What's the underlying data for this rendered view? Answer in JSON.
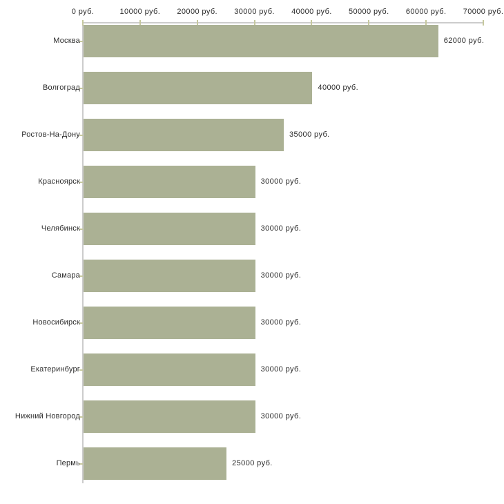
{
  "chart_data": {
    "type": "bar",
    "orientation": "horizontal",
    "title": "",
    "categories": [
      "Москва",
      "Волгоград",
      "Ростов-На-Дону",
      "Красноярск",
      "Челябинск",
      "Самара",
      "Новосибирск",
      "Екатеринбург",
      "Нижний Новгород",
      "Пермь"
    ],
    "values": [
      62000,
      40000,
      35000,
      30000,
      30000,
      30000,
      30000,
      30000,
      30000,
      25000
    ],
    "value_labels": [
      "62000 руб.",
      "40000 руб.",
      "35000 руб.",
      "30000 руб.",
      "30000 руб.",
      "30000 руб.",
      "30000 руб.",
      "30000 руб.",
      "30000 руб.",
      "25000 руб."
    ],
    "xlabel": "",
    "ylabel": "",
    "x_axis": {
      "position": "top",
      "min": 0,
      "max": 70000,
      "tick_step": 10000,
      "tick_values": [
        0,
        10000,
        20000,
        30000,
        40000,
        50000,
        60000,
        70000
      ],
      "tick_labels": [
        "0 руб.",
        "10000 руб.",
        "20000 руб.",
        "30000 руб.",
        "40000 руб.",
        "50000 руб.",
        "60000 руб.",
        "70000 руб."
      ]
    },
    "legend": "none",
    "grid": "off",
    "colors": {
      "bar": "#abb194",
      "axis_line": "#cccccc",
      "tick_mark": "#c6c89e",
      "text": "#2b2b2b",
      "background": "#ffffff"
    }
  }
}
